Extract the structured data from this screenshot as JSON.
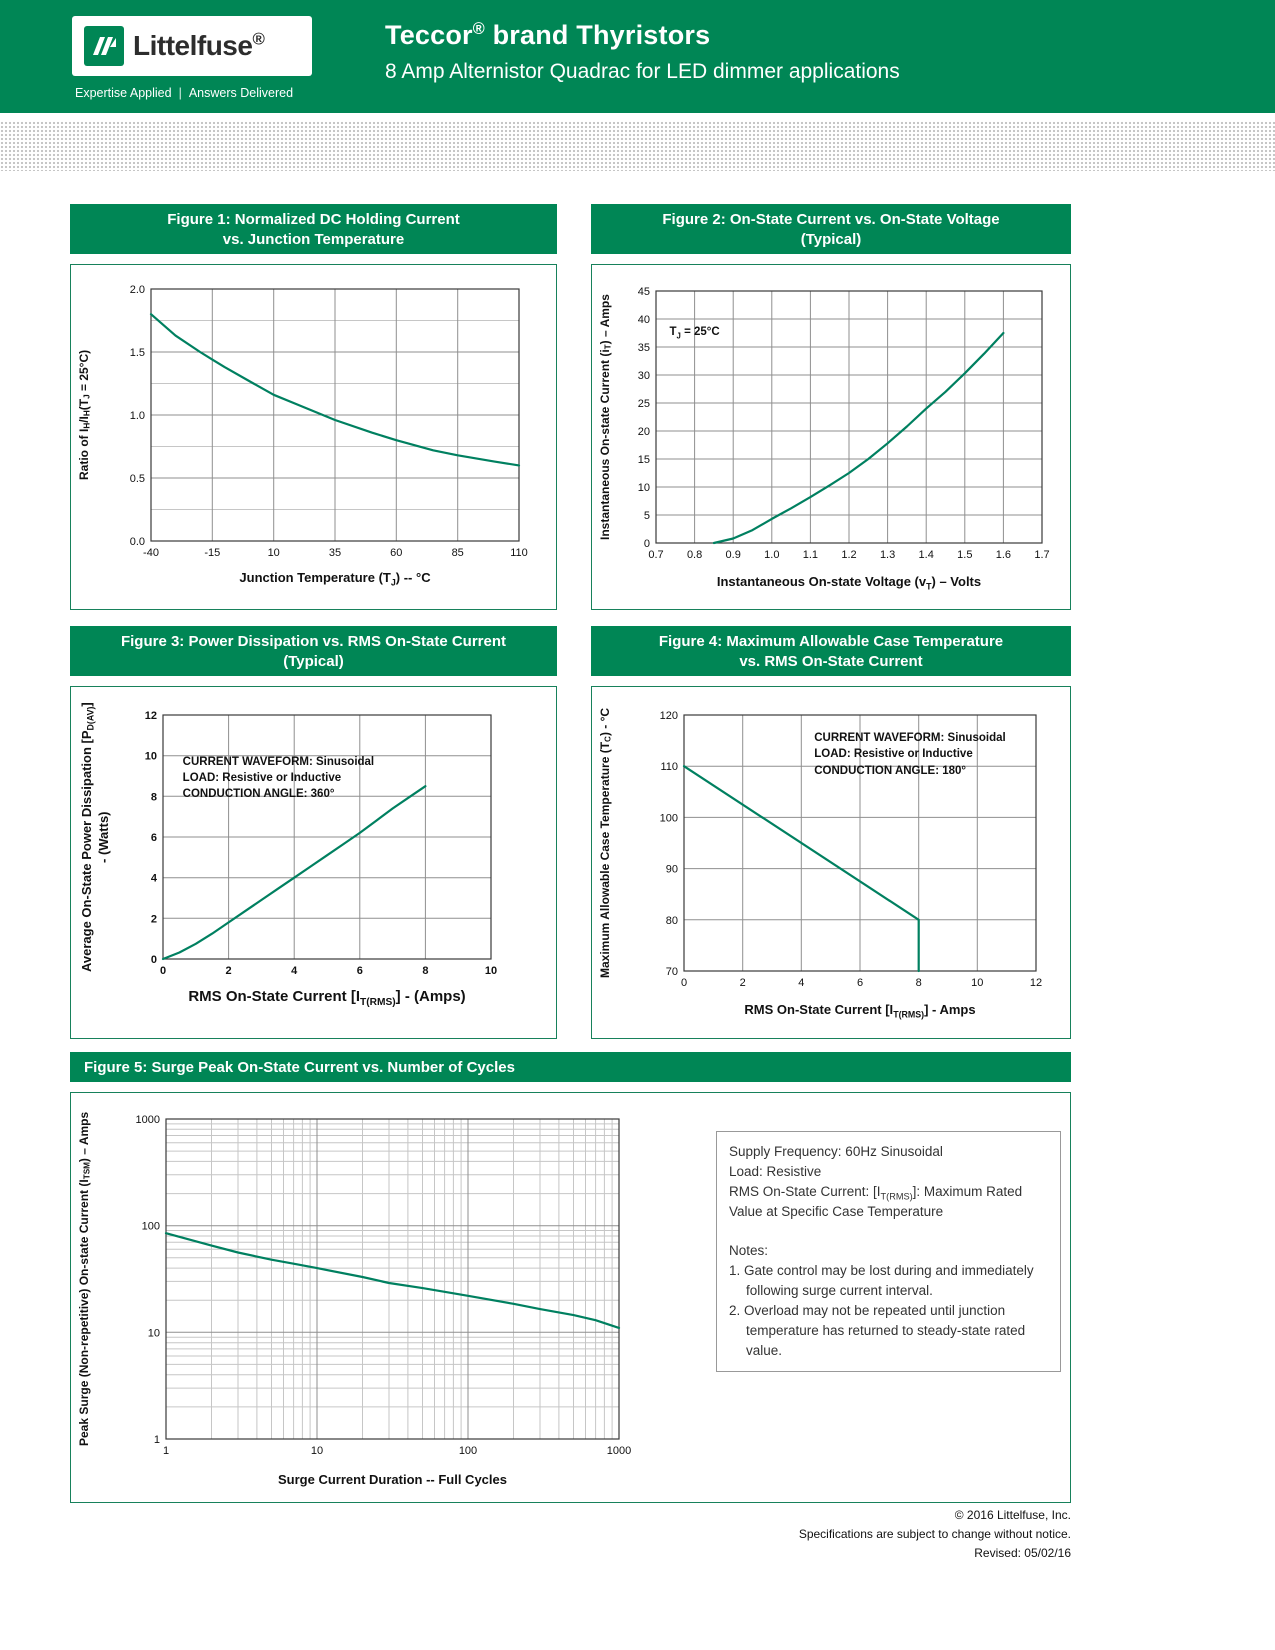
{
  "colors": {
    "green": "#008655",
    "line": "#008060",
    "grid": "#8f8f8f",
    "grid_minor": "#c6c6c6"
  },
  "header": {
    "logo_text": "Littelfuse^®^",
    "tagline_left": "Expertise Applied",
    "tagline_sep": "|",
    "tagline_right": "Answers Delivered",
    "title": "Teccor^®^ brand Thyristors",
    "subtitle": "8 Amp Alternistor Quadrac for LED dimmer applications"
  },
  "chart_data": [
    {
      "type": "line",
      "title_line1": "Figure 1: Normalized DC Holding Current",
      "title_line2": "vs. Junction Temperature",
      "xlabel": "Junction Temperature (T~J~) -- °C",
      "ylabel": "Ratio of I~H~/I~H~(T~J~ = 25°C)",
      "xscale": "linear",
      "yscale": "linear",
      "xlim": [
        -40,
        110
      ],
      "ylim": [
        0,
        2
      ],
      "xticks": [
        -40,
        -15,
        10,
        35,
        60,
        85,
        110
      ],
      "xtick_labels": [
        "-40",
        "-15",
        "10",
        "35",
        "60",
        "85",
        "110"
      ],
      "yticks": [
        0,
        0.5,
        1,
        1.5,
        2
      ],
      "ytick_labels": [
        "0.0",
        "0.5",
        "1.0",
        "1.5",
        "2.0"
      ],
      "yminor": 0.25,
      "series": [
        {
          "name": "normalized-holding-current",
          "points": [
            [
              -40,
              1.8
            ],
            [
              -30,
              1.63
            ],
            [
              -20,
              1.5
            ],
            [
              -15,
              1.44
            ],
            [
              -10,
              1.38
            ],
            [
              0,
              1.27
            ],
            [
              10,
              1.16
            ],
            [
              20,
              1.08
            ],
            [
              35,
              0.96
            ],
            [
              50,
              0.86
            ],
            [
              60,
              0.8
            ],
            [
              75,
              0.72
            ],
            [
              85,
              0.68
            ],
            [
              100,
              0.63
            ],
            [
              110,
              0.6
            ]
          ]
        }
      ],
      "annotations": []
    },
    {
      "type": "line",
      "title_line1": "Figure 2: On-State Current vs. On-State Voltage",
      "title_line2": "(Typical)",
      "xlabel": "Instantaneous On-state Voltage (v~T~) – Volts",
      "ylabel": "Instantaneous On-state Current (i~T~) – Amps",
      "xscale": "linear",
      "yscale": "linear",
      "xlim": [
        0.7,
        1.7
      ],
      "ylim": [
        0,
        45
      ],
      "xticks": [
        0.7,
        0.8,
        0.9,
        1.0,
        1.1,
        1.2,
        1.3,
        1.4,
        1.5,
        1.6,
        1.7
      ],
      "xtick_labels": [
        "0.7",
        "0.8",
        "0.9",
        "1.0",
        "1.1",
        "1.2",
        "1.3",
        "1.4",
        "1.5",
        "1.6",
        "1.7"
      ],
      "yticks": [
        0,
        5,
        10,
        15,
        20,
        25,
        30,
        35,
        40,
        45
      ],
      "ytick_labels": [
        "0",
        "5",
        "10",
        "15",
        "20",
        "25",
        "30",
        "35",
        "40",
        "45"
      ],
      "series": [
        {
          "name": "on-state-current",
          "points": [
            [
              0.85,
              0
            ],
            [
              0.9,
              0.8
            ],
            [
              0.95,
              2.3
            ],
            [
              1.0,
              4.3
            ],
            [
              1.05,
              6.2
            ],
            [
              1.1,
              8.2
            ],
            [
              1.15,
              10.3
            ],
            [
              1.2,
              12.5
            ],
            [
              1.25,
              15.0
            ],
            [
              1.3,
              17.8
            ],
            [
              1.35,
              20.8
            ],
            [
              1.4,
              24.0
            ],
            [
              1.45,
              27.0
            ],
            [
              1.5,
              30.3
            ],
            [
              1.55,
              33.8
            ],
            [
              1.6,
              37.5
            ]
          ]
        }
      ],
      "annotations": [
        {
          "lines": [
            "T~J~ = 25°C"
          ],
          "fx": 0.035,
          "fy": 0.13
        }
      ]
    },
    {
      "type": "line",
      "title_line1": "Figure 3: Power Dissipation vs. RMS On-State Current",
      "title_line2": "(Typical)",
      "xlabel": "RMS On-State Current [I~T(RMS)~] - (Amps)",
      "ylabel": "Average On-State Power Dissipation [P~D(AV)~] - (Watts)",
      "xscale": "linear",
      "yscale": "linear",
      "xlim": [
        0,
        10
      ],
      "ylim": [
        0,
        12
      ],
      "xticks": [
        0,
        2,
        4,
        6,
        8,
        10
      ],
      "xtick_labels": [
        "0",
        "2",
        "4",
        "6",
        "8",
        "10"
      ],
      "yticks": [
        0,
        2,
        4,
        6,
        8,
        10,
        12
      ],
      "ytick_labels": [
        "0",
        "2",
        "4",
        "6",
        "8",
        "10",
        "12"
      ],
      "series": [
        {
          "name": "power-dissipation",
          "points": [
            [
              0,
              0
            ],
            [
              0.5,
              0.32
            ],
            [
              1,
              0.75
            ],
            [
              1.5,
              1.25
            ],
            [
              2,
              1.8
            ],
            [
              2.5,
              2.35
            ],
            [
              3,
              2.9
            ],
            [
              3.5,
              3.45
            ],
            [
              4,
              4.0
            ],
            [
              4.5,
              4.55
            ],
            [
              5,
              5.1
            ],
            [
              5.5,
              5.65
            ],
            [
              6,
              6.2
            ],
            [
              6.5,
              6.8
            ],
            [
              7,
              7.4
            ],
            [
              7.5,
              7.95
            ],
            [
              8,
              8.5
            ]
          ]
        }
      ],
      "annotations": [
        {
          "lines": [
            "CURRENT WAVEFORM: Sinusoidal",
            "LOAD: Resistive or Inductive",
            "CONDUCTION ANGLE: 360°"
          ],
          "fx": 0.06,
          "fy": 0.16
        }
      ]
    },
    {
      "type": "line",
      "title_line1": "Figure 4: Maximum Allowable Case Temperature",
      "title_line2": "vs. RMS On-State Current",
      "xlabel": "RMS On-State Current [I~T(RMS)~] - Amps",
      "ylabel": "Maximum Allowable Case Temperature (T~C~) - °C",
      "xscale": "linear",
      "yscale": "linear",
      "xlim": [
        0,
        12
      ],
      "ylim": [
        70,
        120
      ],
      "xticks": [
        0,
        2,
        4,
        6,
        8,
        10,
        12
      ],
      "xtick_labels": [
        "0",
        "2",
        "4",
        "6",
        "8",
        "10",
        "12"
      ],
      "yticks": [
        70,
        80,
        90,
        100,
        110,
        120
      ],
      "ytick_labels": [
        "70",
        "80",
        "90",
        "100",
        "110",
        "120"
      ],
      "series": [
        {
          "name": "max-case-temperature",
          "points": [
            [
              0,
              110
            ],
            [
              8,
              80
            ],
            [
              8,
              70
            ]
          ]
        }
      ],
      "annotations": [
        {
          "lines": [
            "CURRENT WAVEFORM: Sinusoidal",
            "LOAD: Resistive or Inductive",
            "CONDUCTION ANGLE: 180°"
          ],
          "fx": 0.37,
          "fy": 0.06
        }
      ]
    },
    {
      "type": "line",
      "title_line1": "Figure 5: Surge Peak On-State Current vs. Number of Cycles",
      "xlabel": "Surge Current Duration -- Full Cycles",
      "ylabel": "Peak Surge (Non-repetitive) On-state Current (I~TSM~) – Amps",
      "xscale": "log",
      "yscale": "log",
      "xlim": [
        1,
        1000
      ],
      "ylim": [
        1,
        1000
      ],
      "xticks": [
        1,
        10,
        100,
        1000
      ],
      "xtick_labels": [
        "1",
        "10",
        "100",
        "1000"
      ],
      "yticks": [
        1,
        10,
        100,
        1000
      ],
      "ytick_labels": [
        "1",
        "10",
        "100",
        "1000"
      ],
      "series": [
        {
          "name": "surge-current",
          "points": [
            [
              1,
              85
            ],
            [
              2,
              65
            ],
            [
              3,
              56
            ],
            [
              5,
              48
            ],
            [
              7,
              44
            ],
            [
              10,
              40
            ],
            [
              20,
              33
            ],
            [
              30,
              29
            ],
            [
              50,
              26
            ],
            [
              70,
              24
            ],
            [
              100,
              22
            ],
            [
              200,
              18.5
            ],
            [
              300,
              16.5
            ],
            [
              500,
              14.5
            ],
            [
              700,
              13
            ],
            [
              1000,
              11
            ]
          ]
        }
      ],
      "annotations": []
    }
  ],
  "surge_info": {
    "lines": [
      "Supply Frequency: 60Hz Sinusoidal",
      "Load: Resistive",
      "RMS On-State Current: [I~T(RMS)~]: Maximum Rated Value at Specific Case Temperature"
    ],
    "notes_title": "Notes:",
    "notes": [
      "1. Gate control may be lost during and immediately following surge current interval.",
      "2. Overload may not be repeated until junction temperature has returned to steady-state rated value."
    ]
  },
  "footer": {
    "line1": "© 2016 Littelfuse, Inc.",
    "line2": "Specifications are subject to change without notice.",
    "line3": "Revised: 05/02/16"
  }
}
